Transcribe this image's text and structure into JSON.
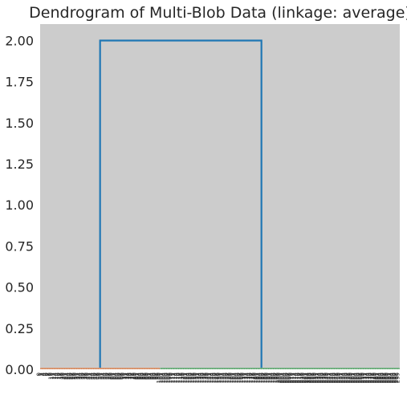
{
  "chart_data": {
    "type": "dendrogram",
    "title": "Dendrogram of Multi-Blob Data (linkage: average)",
    "xlabel": "",
    "ylabel": "",
    "ylim": [
      0,
      2.1
    ],
    "yticks": [
      "0.00",
      "0.25",
      "0.50",
      "0.75",
      "1.00",
      "1.25",
      "1.50",
      "1.75",
      "2.00"
    ],
    "grid": false,
    "background": "#cccccc",
    "leaf_count": 300,
    "root_merge_height": 2.0,
    "clusters": [
      {
        "color": "#dd8452",
        "leaf_range": [
          0,
          100
        ],
        "max_merge_height": 0.01
      },
      {
        "color": "#55a868",
        "leaf_range": [
          100,
          300
        ],
        "max_merge_height": 0.01
      }
    ],
    "link_color": "#1f77b4"
  }
}
